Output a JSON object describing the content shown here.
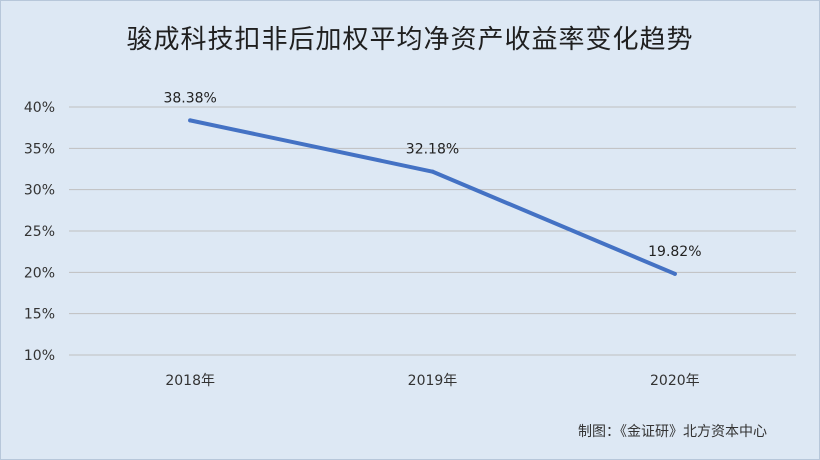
{
  "chart_data": {
    "type": "line",
    "title": "骏成科技扣非后加权平均净资产收益率变化趋势",
    "categories": [
      "2018年",
      "2019年",
      "2020年"
    ],
    "series": [
      {
        "values": [
          38.38,
          32.18,
          19.82
        ],
        "labels": [
          "38.38%",
          "32.18%",
          "19.82%"
        ],
        "color": "#4472c4"
      }
    ],
    "ylim": [
      10,
      40
    ],
    "yticks": [
      10,
      15,
      20,
      25,
      30,
      35,
      40
    ],
    "ytick_labels": [
      "10%",
      "15%",
      "20%",
      "25%",
      "30%",
      "35%",
      "40%"
    ],
    "grid": true,
    "legend": "none"
  },
  "source": "制图：《金证研》北方资本中心"
}
